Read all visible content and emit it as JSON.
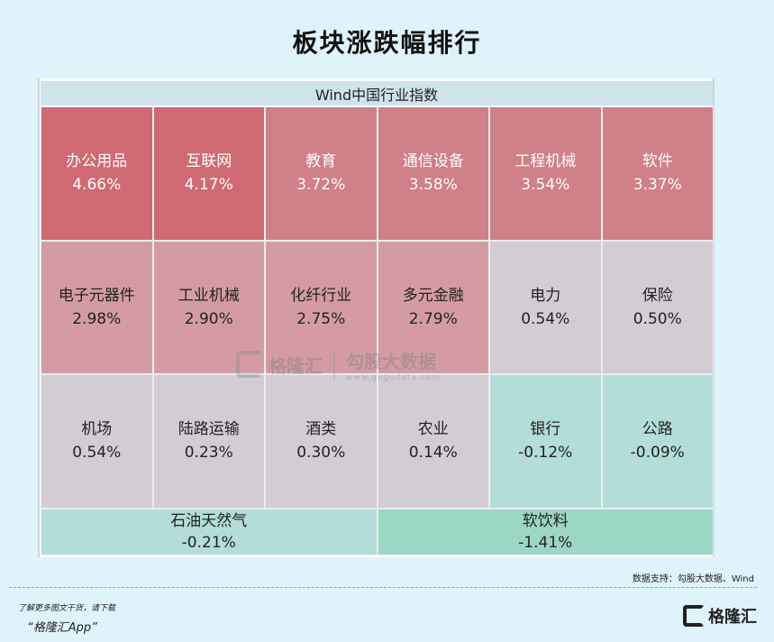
{
  "title": "板块涨跌幅排行",
  "chart_data": {
    "type": "heatmap",
    "header": "Wind中国行业指数",
    "tiles": [
      {
        "name": "办公用品",
        "value": "4.66%",
        "color": "#d06a72"
      },
      {
        "name": "互联网",
        "value": "4.17%",
        "color": "#d06a72"
      },
      {
        "name": "教育",
        "value": "3.72%",
        "color": "#d08087"
      },
      {
        "name": "通信设备",
        "value": "3.58%",
        "color": "#d08087"
      },
      {
        "name": "工程机械",
        "value": "3.54%",
        "color": "#d08087"
      },
      {
        "name": "软件",
        "value": "3.37%",
        "color": "#d08087"
      },
      {
        "name": "电子元器件",
        "value": "2.98%",
        "color": "#d49ca2"
      },
      {
        "name": "工业机械",
        "value": "2.90%",
        "color": "#d49ca2"
      },
      {
        "name": "化纤行业",
        "value": "2.75%",
        "color": "#d49ca2"
      },
      {
        "name": "多元金融",
        "value": "2.79%",
        "color": "#d49ca2"
      },
      {
        "name": "电力",
        "value": "0.54%",
        "color": "#d3ccd3"
      },
      {
        "name": "保险",
        "value": "0.50%",
        "color": "#d3ccd3"
      },
      {
        "name": "机场",
        "value": "0.54%",
        "color": "#d3ccd3"
      },
      {
        "name": "陆路运输",
        "value": "0.23%",
        "color": "#d3ccd3"
      },
      {
        "name": "酒类",
        "value": "0.30%",
        "color": "#d3ccd3"
      },
      {
        "name": "农业",
        "value": "0.14%",
        "color": "#d3ccd3"
      },
      {
        "name": "银行",
        "value": "-0.12%",
        "color": "#b3ddd8"
      },
      {
        "name": "公路",
        "value": "-0.09%",
        "color": "#b3ddd8"
      },
      {
        "name": "石油天然气",
        "value": "-0.21%",
        "color": "#b3ddd8"
      },
      {
        "name": "软饮料",
        "value": "-1.41%",
        "color": "#9cd6c5"
      }
    ]
  },
  "watermark": {
    "brand": "格隆汇",
    "text": "勾股大数据",
    "url": "www.gogudata.com"
  },
  "source": "数据支持：勾股大数据、Wind",
  "promo": {
    "line1": "了解更多图文干货，请下载",
    "line2": "“格隆汇App”"
  },
  "brand_logo": "格隆汇"
}
